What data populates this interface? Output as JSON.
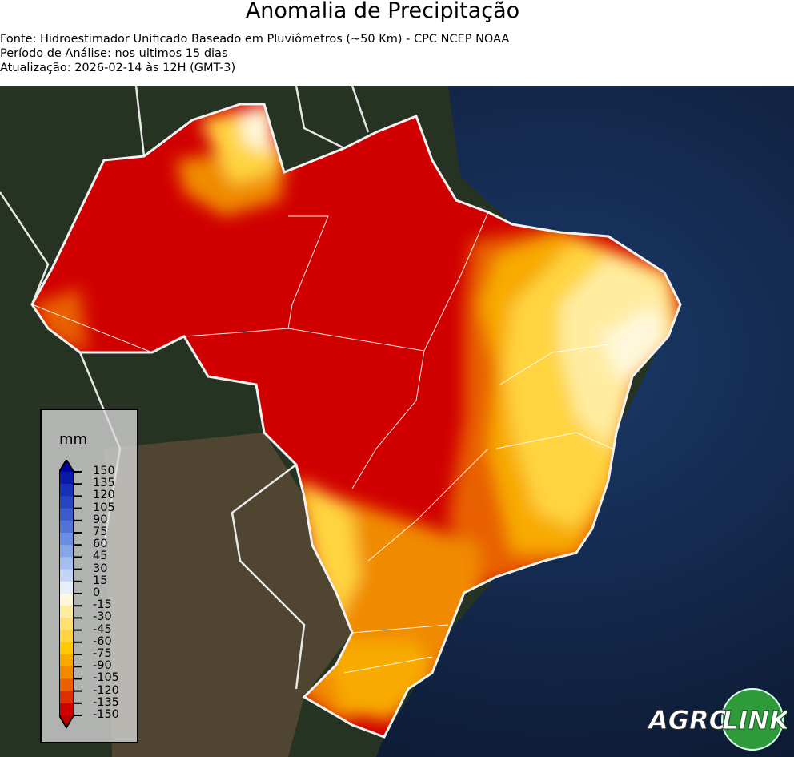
{
  "header": {
    "title": "Anomalia de Precipitação",
    "source": "Fonte: Hidroestimador Unificado Baseado em Pluviômetros (~50 Km) - CPC NCEP NOAA",
    "period": "Período de Análise: nos ultimos 15 dias",
    "updated": "Atualização: 2026-02-14 às 12H (GMT-3)"
  },
  "legend": {
    "unit": "mm",
    "ticks": [
      "150",
      "135",
      "120",
      "105",
      "90",
      "75",
      "60",
      "45",
      "30",
      "15",
      "0",
      "-15",
      "-30",
      "-45",
      "-60",
      "-75",
      "-90",
      "-105",
      "-120",
      "-135",
      "-150"
    ],
    "colors": [
      "#0a1aa8",
      "#1830b4",
      "#2646c0",
      "#3a5ccc",
      "#4f74d6",
      "#6a8ee0",
      "#86a6e8",
      "#a4bef0",
      "#c4d4f6",
      "#e8eefc",
      "#fff8dc",
      "#ffeca0",
      "#ffe070",
      "#ffd440",
      "#ffc800",
      "#f8aa00",
      "#f08a00",
      "#e86000",
      "#dc3000",
      "#d00000"
    ],
    "max_color": "#0000a0",
    "min_color": "#c00000"
  },
  "logo": {
    "text_left": "AGRO",
    "text_right": "LINK"
  },
  "colors": {
    "ocean": "#0e1e3a",
    "land": "#1f2a1a",
    "border": "#ffffff"
  }
}
